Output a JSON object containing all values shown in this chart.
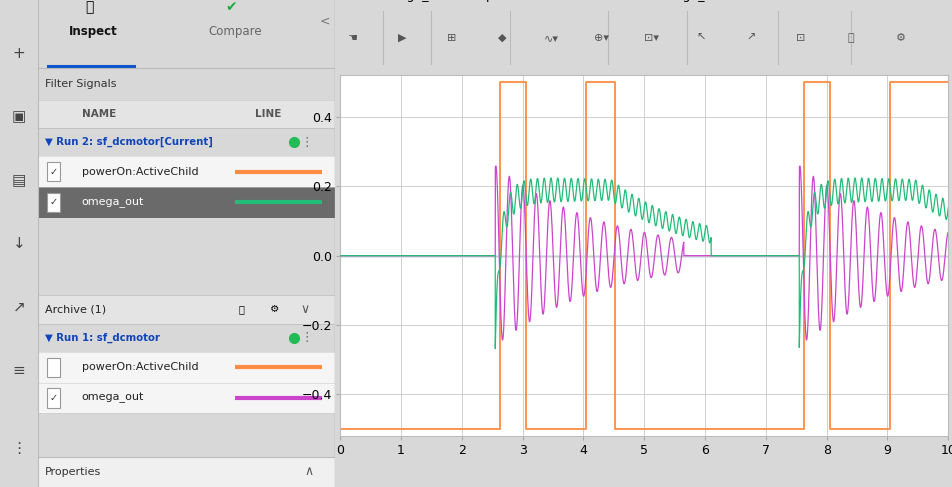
{
  "xlim": [
    0,
    10
  ],
  "ylim": [
    -0.52,
    0.52
  ],
  "xticks": [
    0,
    1,
    2,
    3,
    4,
    5,
    6,
    7,
    8,
    9,
    10
  ],
  "yticks": [
    -0.4,
    -0.2,
    0.0,
    0.2,
    0.4
  ],
  "grid_color": "#d0d0d0",
  "plot_bg_color": "#ffffff",
  "panel_bg_color": "#f0f0f0",
  "icon_bar_color": "#d8d8d8",
  "orange_color": "#ff8c42",
  "green_color": "#22bb77",
  "purple_color": "#cc44cc",
  "blue_color": "#5588aa",
  "run2_dot_color": "#22bb55",
  "run1_dot_color": "#22bb55",
  "selected_row_color": "#6a6a6a",
  "legend_labels": [
    "omega_out",
    "powerOn:ActiveChild",
    "omega_out"
  ],
  "inspect_label": "Inspect",
  "compare_label": "Compare",
  "filter_label": "Filter Signals",
  "name_col": "NAME",
  "line_col": "LINE",
  "run2_label": "Run 2: sf_dcmotor[Current]",
  "run1_label": "Run 1: sf_dcmotor",
  "signal_poweron": "powerOn:ActiveChild",
  "signal_omega": "omega_out",
  "archive_label": "Archive (1)",
  "properties_label": "Properties",
  "tab_underline_color": "#1155cc",
  "icon_color": "#444444",
  "run_label_color": "#1144bb",
  "toolbar_bg": "#e8e8e8",
  "fig_bg": "#d8d8d8"
}
